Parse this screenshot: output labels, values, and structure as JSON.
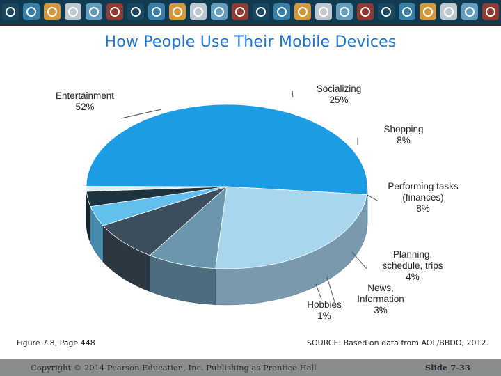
{
  "banner": {
    "icons": [
      "at-icon",
      "phone-icon",
      "mail-icon",
      "wifi-icon",
      "thumbs-up-icon",
      "home-icon",
      "globe-icon",
      "chat-icon",
      "cart-icon",
      "music-icon",
      "cloud-icon",
      "person-icon"
    ],
    "colors": [
      "#1a4a63",
      "#3d87b1",
      "#e9a23b",
      "#d2d8db",
      "#6ea8c9",
      "#9e3b2e"
    ]
  },
  "slide": {
    "title": "How People Use Their Mobile Devices",
    "figure_ref": "Figure 7.8, Page 448",
    "source": "SOURCE: Based on data from AOL/BBDO, 2012."
  },
  "footer": {
    "copyright": "Copyright © 2014 Pearson Education, Inc. Publishing as Prentice Hall",
    "slide_number": "Slide 7-33"
  },
  "chart_data": {
    "type": "pie",
    "style": "3d",
    "labels": [
      "Entertainment",
      "Socializing",
      "Shopping",
      "Performing tasks (finances)",
      "Planning, schedule, trips",
      "News, Information",
      "Hobbies"
    ],
    "label_lines": [
      [
        "Entertainment",
        "52%"
      ],
      [
        "Socializing",
        "25%"
      ],
      [
        "Shopping",
        "8%"
      ],
      [
        "Performing tasks",
        "(finances)",
        "8%"
      ],
      [
        "Planning,",
        "schedule, trips",
        "4%"
      ],
      [
        "News,",
        "Information",
        "3%"
      ],
      [
        "Hobbies",
        "1%"
      ]
    ],
    "values": [
      52,
      25,
      8,
      8,
      4,
      3,
      1
    ],
    "unit": "%",
    "colors": [
      "#1c9ce4",
      "#a8d6ef",
      "#6a97ad",
      "#3c4e5c",
      "#63c0ee",
      "#1e3340",
      "#d9edf7"
    ]
  }
}
